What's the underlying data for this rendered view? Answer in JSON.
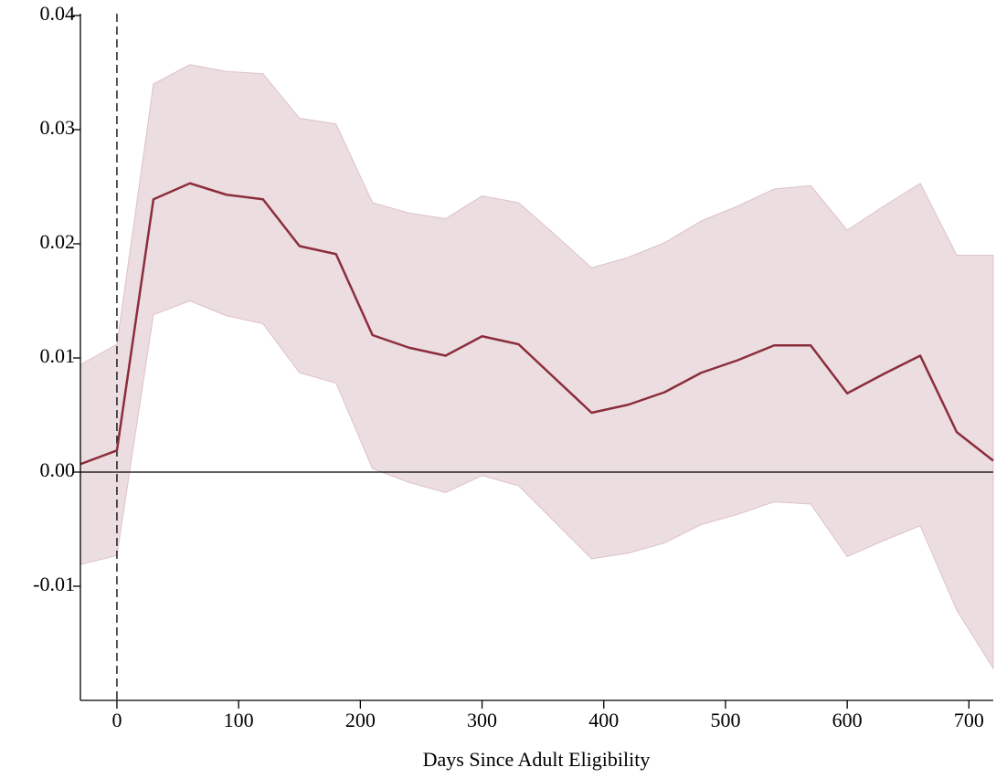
{
  "chart_data": {
    "type": "line",
    "xlabel": "Days Since Adult Eligibility",
    "x": [
      -30,
      0,
      30,
      60,
      90,
      120,
      150,
      180,
      210,
      240,
      270,
      300,
      330,
      360,
      390,
      420,
      450,
      480,
      510,
      540,
      570,
      600,
      630,
      660,
      690,
      720
    ],
    "series": [
      {
        "color": "#8b2d3c",
        "values": [
          0.0007,
          0.0019,
          0.0239,
          0.0253,
          0.0243,
          0.0239,
          0.0198,
          0.0191,
          0.012,
          0.0109,
          0.0102,
          0.0119,
          0.0112,
          0.0082,
          0.0052,
          0.0059,
          0.007,
          0.0087,
          0.0098,
          0.0111,
          0.0111,
          0.0069,
          0.0086,
          0.0102,
          0.0035,
          0.001
        ]
      }
    ],
    "band": {
      "color": "#ecdde0",
      "edge_color": "#dcc3c8",
      "upper": [
        0.0094,
        0.0112,
        0.034,
        0.0357,
        0.0351,
        0.0349,
        0.031,
        0.0305,
        0.0236,
        0.0227,
        0.0222,
        0.0242,
        0.0236,
        0.0208,
        0.0179,
        0.0188,
        0.0201,
        0.022,
        0.0233,
        0.0248,
        0.0251,
        0.0212,
        0.0233,
        0.0253,
        0.019,
        0.019
      ],
      "lower": [
        -0.0081,
        -0.0073,
        0.0138,
        0.015,
        0.0137,
        0.013,
        0.0087,
        0.0078,
        0.0003,
        -0.0009,
        -0.0018,
        -0.0003,
        -0.0012,
        -0.0044,
        -0.0076,
        -0.0071,
        -0.0062,
        -0.0046,
        -0.0037,
        -0.0026,
        -0.0028,
        -0.0074,
        -0.006,
        -0.0047,
        -0.0121,
        -0.0172
      ]
    },
    "xlim": [
      -30,
      720
    ],
    "xticks": [
      0,
      100,
      200,
      300,
      400,
      500,
      600,
      700
    ],
    "ylim": [
      -0.02,
      0.04
    ],
    "yticks": [
      {
        "value": 0.04,
        "label": "0.04"
      },
      0.03,
      0.02,
      0.01,
      {
        "value": 0,
        "label": "0.00"
      },
      -0.01
    ],
    "vline_x": 0,
    "hline_y": 0,
    "grid": false
  }
}
